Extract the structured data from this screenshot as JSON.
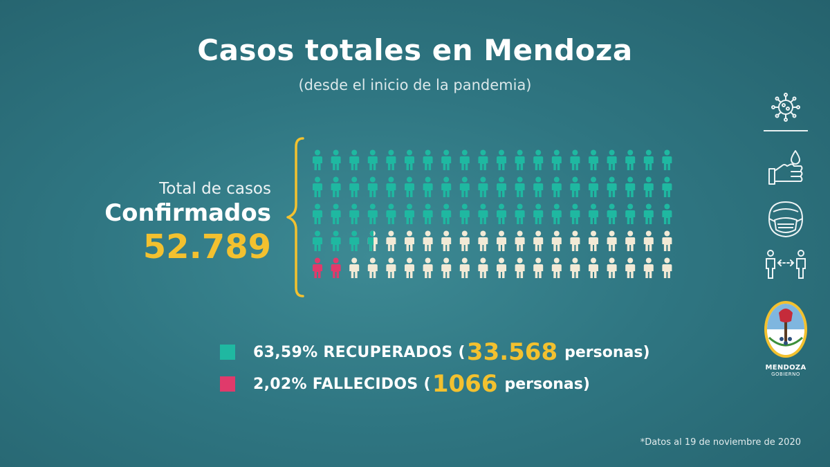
{
  "title": "Casos totales en Mendoza",
  "subtitle": "(desde el inicio de la pandemia)",
  "total": {
    "label_line1": "Total de casos",
    "label_line2": "Confirmados",
    "value": "52.789"
  },
  "chart_data": {
    "type": "table",
    "subtype": "pictogram",
    "rows": 5,
    "columns": 20,
    "icons_total": 100,
    "categories": [
      "recuperados",
      "fallecidos",
      "resto"
    ],
    "values": [
      63.59,
      2.02,
      34.39
    ],
    "colors": {
      "recuperados": "#1fb8a1",
      "fallecidos": "#e03a6b",
      "resto": "#f2ead6"
    }
  },
  "legend": [
    {
      "percent_label": "63,59% RECUPERADOS (",
      "count": "33.568",
      "tail": "personas)",
      "color": "#1fb8a1"
    },
    {
      "percent_label": "2,02% FALLECIDOS (",
      "count": "1066",
      "tail": "personas)",
      "color": "#e03a6b"
    }
  ],
  "footnote": "*Datos al 19 de noviembre de 2020",
  "sidebar_icons": [
    "virus-icon",
    "handwash-icon",
    "face-mask-icon",
    "social-distance-icon"
  ],
  "logo": {
    "line1": "MENDOZA",
    "line2": "GOBIERNO"
  },
  "colors": {
    "accent": "#f3c12f",
    "background": "#2f7682"
  }
}
